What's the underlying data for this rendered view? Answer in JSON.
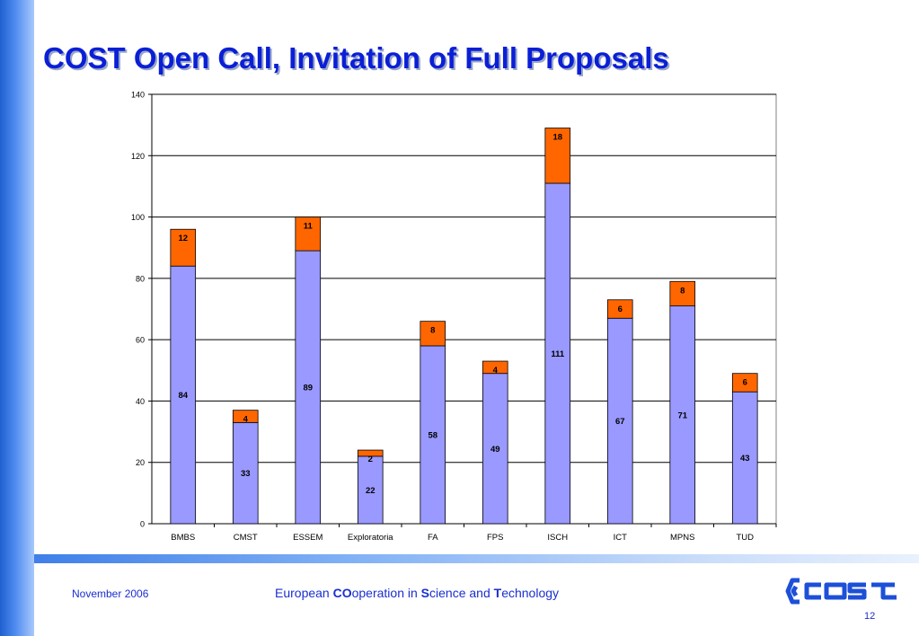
{
  "slide": {
    "title": "COST Open Call, Invitation of Full Proposals",
    "date": "November 2006",
    "page_number": "12",
    "tagline": {
      "p1": "European ",
      "b1": "CO",
      "p2": "operation in ",
      "b2": "S",
      "p3": "cience and ",
      "b3": "T",
      "p4": "echnology"
    },
    "logo_icon": "cost-logo-icon"
  },
  "colors": {
    "base_series": "#9999ff",
    "top_series": "#ff6600",
    "title": "#0a1fd6"
  },
  "chart_data": {
    "type": "bar",
    "stacked": true,
    "categories": [
      "BMBS",
      "CMST",
      "ESSEM",
      "Exploratoria",
      "FA",
      "FPS",
      "ISCH",
      "ICT",
      "MPNS",
      "TUD"
    ],
    "series": [
      {
        "values": [
          84,
          33,
          89,
          22,
          58,
          49,
          111,
          67,
          71,
          43
        ]
      },
      {
        "values": [
          12,
          4,
          11,
          2,
          8,
          4,
          18,
          6,
          8,
          6
        ]
      }
    ],
    "ylim": [
      0,
      140
    ],
    "yticks": [
      0,
      20,
      40,
      60,
      80,
      100,
      120,
      140
    ],
    "grid": true,
    "legend": "none",
    "xlabel": "",
    "ylabel": ""
  }
}
